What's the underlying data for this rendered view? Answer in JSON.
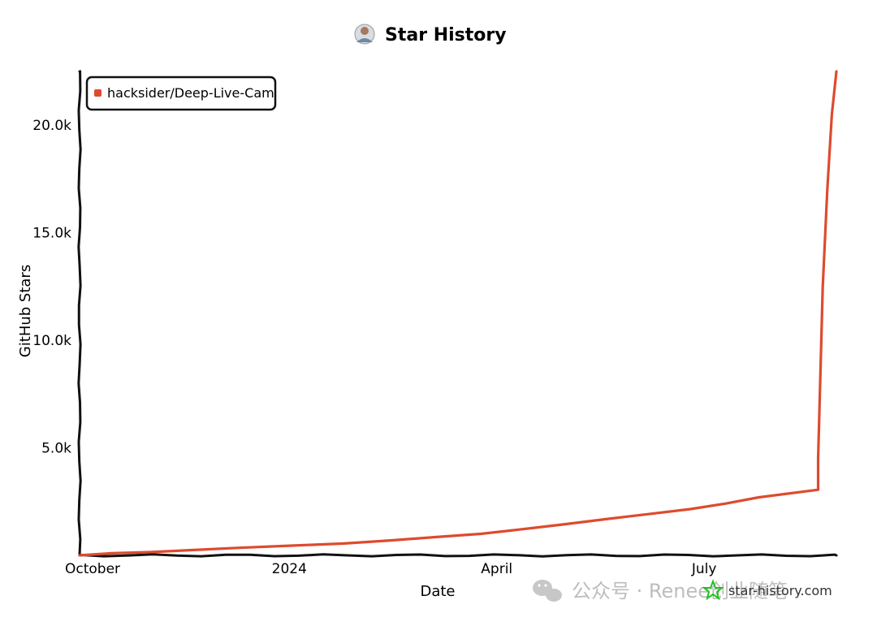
{
  "chart_data": {
    "type": "line",
    "title": "Star History",
    "xlabel": "Date",
    "ylabel": "GitHub Stars",
    "x_ticks": [
      "October",
      "2024",
      "April",
      "July"
    ],
    "x_tick_dates": [
      "2023-10-01",
      "2024-01-01",
      "2024-04-01",
      "2024-07-01"
    ],
    "xlim": [
      "2023-10-01",
      "2024-08-28"
    ],
    "ylim": [
      0,
      22500
    ],
    "y_ticks": [
      5000,
      10000,
      15000,
      20000
    ],
    "y_tick_labels": [
      "5.0k",
      "10.0k",
      "15.0k",
      "20.0k"
    ],
    "legend_position": "top-left",
    "grid": false,
    "series": [
      {
        "name": "hacksider/Deep-Live-Cam",
        "color": "#dd4b2e",
        "points": [
          {
            "x": "2023-10-01",
            "y": 0
          },
          {
            "x": "2023-10-15",
            "y": 100
          },
          {
            "x": "2023-11-01",
            "y": 150
          },
          {
            "x": "2023-11-20",
            "y": 250
          },
          {
            "x": "2023-12-10",
            "y": 350
          },
          {
            "x": "2024-01-01",
            "y": 450
          },
          {
            "x": "2024-01-25",
            "y": 550
          },
          {
            "x": "2024-02-15",
            "y": 700
          },
          {
            "x": "2024-03-05",
            "y": 850
          },
          {
            "x": "2024-03-25",
            "y": 1000
          },
          {
            "x": "2024-04-15",
            "y": 1250
          },
          {
            "x": "2024-05-01",
            "y": 1450
          },
          {
            "x": "2024-05-20",
            "y": 1700
          },
          {
            "x": "2024-06-05",
            "y": 1900
          },
          {
            "x": "2024-06-25",
            "y": 2150
          },
          {
            "x": "2024-07-10",
            "y": 2400
          },
          {
            "x": "2024-07-25",
            "y": 2700
          },
          {
            "x": "2024-08-20",
            "y": 3050
          },
          {
            "x": "2024-08-20",
            "y": 4500
          },
          {
            "x": "2024-08-22",
            "y": 12500
          },
          {
            "x": "2024-08-24",
            "y": 17000
          },
          {
            "x": "2024-08-26",
            "y": 20500
          },
          {
            "x": "2024-08-28",
            "y": 22500
          }
        ]
      }
    ]
  },
  "footer": {
    "site": "star-history.com",
    "watermark": "公众号 · Renee创业随笔"
  },
  "colors": {
    "axis": "#111111",
    "series": "#dd4b2e",
    "star_icon": "#22c222",
    "watermark": "#bdbdbd"
  }
}
